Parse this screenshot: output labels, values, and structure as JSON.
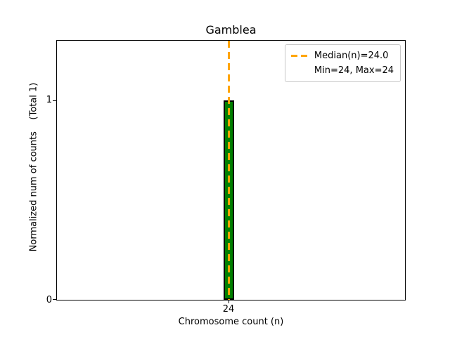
{
  "chart_data": {
    "type": "bar",
    "title": "Gamblea",
    "xlabel": "Chromosome count (n)",
    "ylabel": "Normalized num of counts    (Total 1)",
    "categories": [
      24
    ],
    "values": [
      1
    ],
    "x_ticks": [
      "24"
    ],
    "y_ticks": [
      "0",
      "1"
    ],
    "ylim": [
      0,
      1.3
    ],
    "grid": false,
    "legend_position": "upper right",
    "legend": [
      "Median(n)=24.0",
      "Min=24, Max=24"
    ],
    "median_n": 24.0,
    "min_n": 24,
    "max_n": 24,
    "total_counts": 1,
    "bar_color": "#008000",
    "bar_edge_color": "#000000",
    "median_line_color": "#FFA500"
  }
}
